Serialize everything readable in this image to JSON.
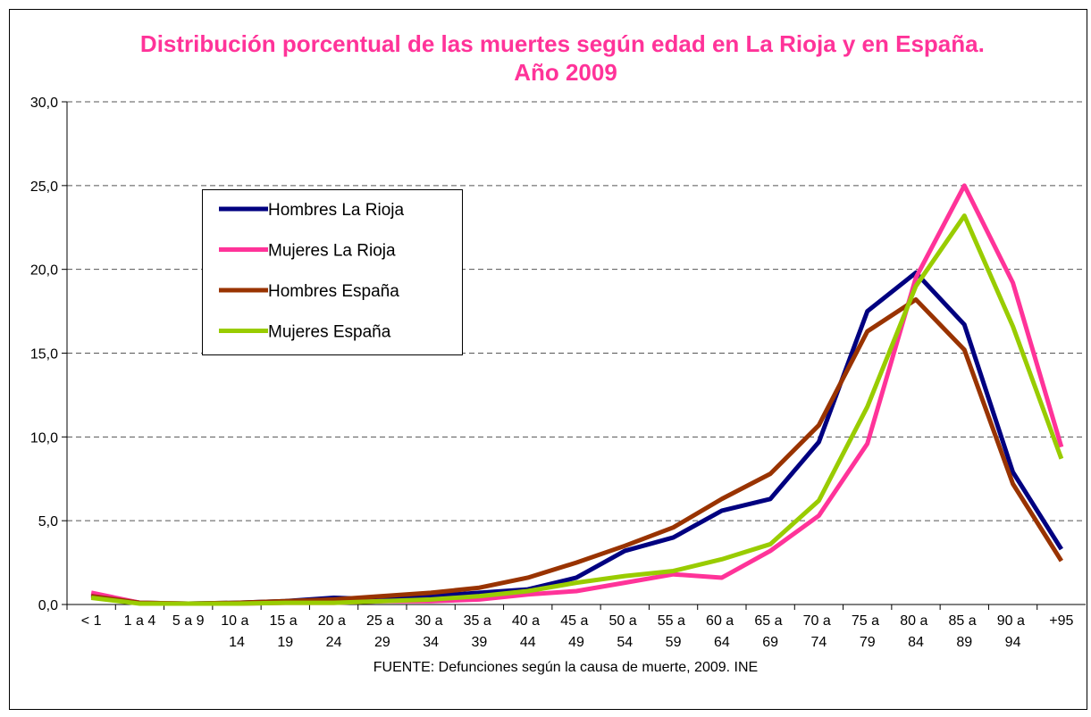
{
  "chart_data": {
    "type": "line",
    "title": "Distribución porcentual de las muertes según edad en La Rioja y en España. Año 2009",
    "source": "FUENTE: Defunciones según la causa de muerte, 2009. INE",
    "categories": [
      "< 1",
      "1 a 4",
      "5 a 9",
      "10 a 14",
      "15 a 19",
      "20 a 24",
      "25 a 29",
      "30 a 34",
      "35 a 39",
      "40 a 44",
      "45 a 49",
      "50 a 54",
      "55 a 59",
      "60 a 64",
      "65 a 69",
      "70 a 74",
      "75 a 79",
      "80 a 84",
      "85 a 89",
      "90 a 94",
      "+95"
    ],
    "series": [
      {
        "name": "Hombres La Rioja",
        "color": "#000080",
        "values": [
          0.6,
          0.1,
          0.05,
          0.1,
          0.2,
          0.4,
          0.3,
          0.5,
          0.7,
          0.9,
          1.6,
          3.2,
          4.0,
          5.6,
          6.3,
          9.7,
          17.5,
          19.8,
          16.7,
          7.9,
          3.3
        ]
      },
      {
        "name": "Mujeres La Rioja",
        "color": "#ff3399",
        "values": [
          0.7,
          0.1,
          0.05,
          0.05,
          0.1,
          0.1,
          0.2,
          0.2,
          0.3,
          0.6,
          0.8,
          1.3,
          1.8,
          1.6,
          3.2,
          5.3,
          9.6,
          19.5,
          25.0,
          19.2,
          9.4
        ]
      },
      {
        "name": "Hombres España",
        "color": "#993300",
        "values": [
          0.5,
          0.1,
          0.05,
          0.1,
          0.2,
          0.3,
          0.5,
          0.7,
          1.0,
          1.6,
          2.5,
          3.5,
          4.6,
          6.3,
          7.8,
          10.7,
          16.3,
          18.2,
          15.2,
          7.2,
          2.6
        ]
      },
      {
        "name": "Mujeres España",
        "color": "#99cc00",
        "values": [
          0.4,
          0.05,
          0.05,
          0.05,
          0.1,
          0.1,
          0.2,
          0.3,
          0.5,
          0.8,
          1.3,
          1.7,
          2.0,
          2.7,
          3.6,
          6.2,
          11.8,
          19.0,
          23.2,
          16.6,
          8.7
        ]
      }
    ],
    "ylim": [
      0,
      30
    ],
    "yticks": [
      {
        "value": 0,
        "label": "0,0"
      },
      {
        "value": 5,
        "label": "5,0"
      },
      {
        "value": 10,
        "label": "10,0"
      },
      {
        "value": 15,
        "label": "15,0"
      },
      {
        "value": 20,
        "label": "20,0"
      },
      {
        "value": 25,
        "label": "25,0"
      },
      {
        "value": 30,
        "label": "30,0"
      }
    ],
    "grid": true
  }
}
